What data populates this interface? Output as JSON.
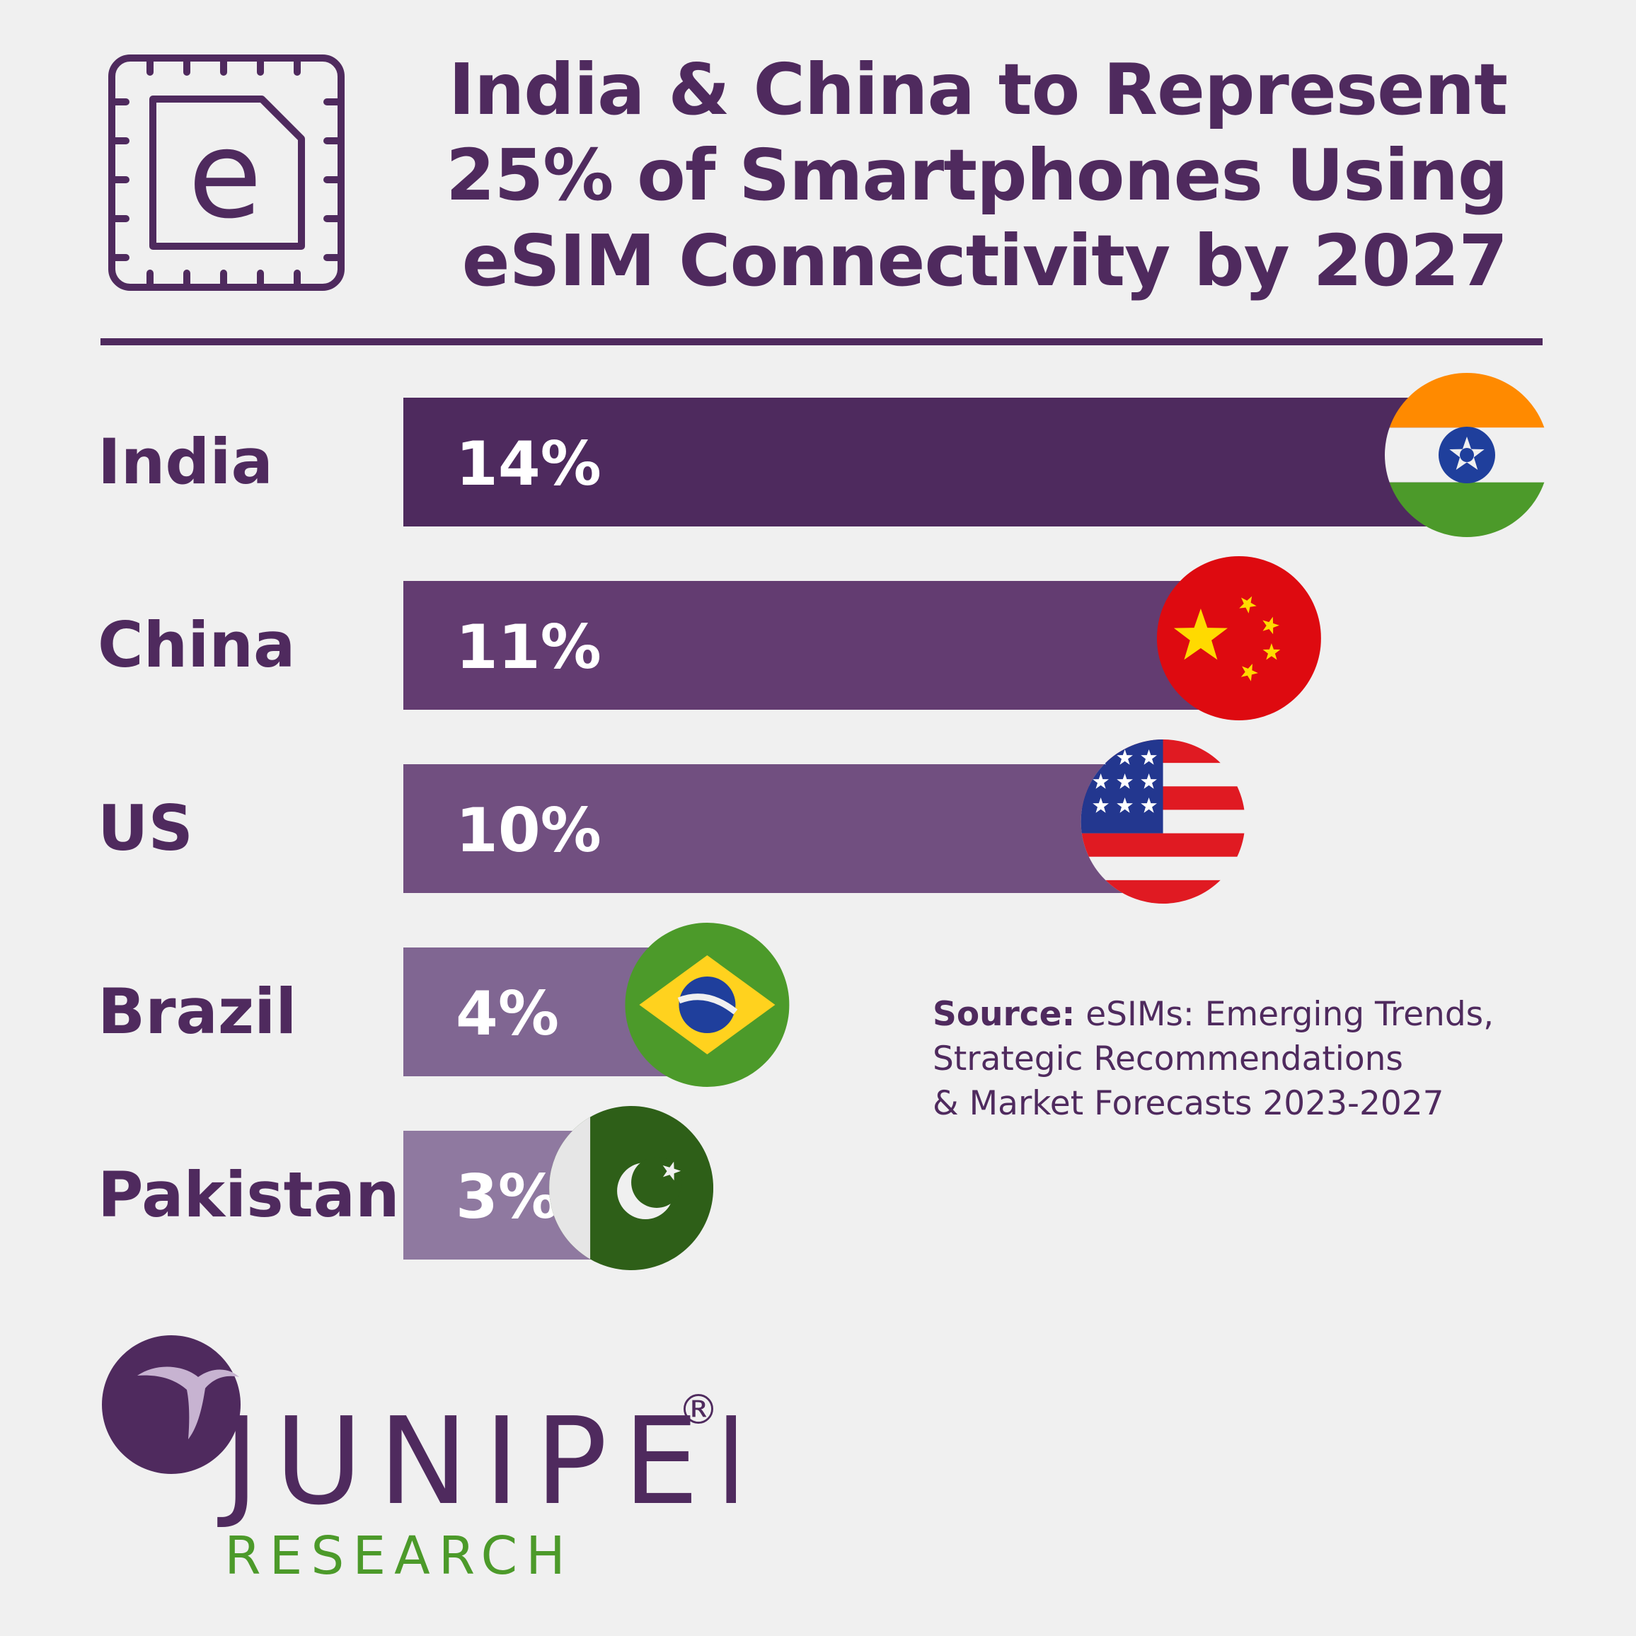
{
  "header": {
    "icon": "esim-chip-icon",
    "title_lines": [
      "India & China to Represent",
      "25% of Smartphones Using",
      "eSIM Connectivity by 2027"
    ]
  },
  "chart_data": {
    "type": "bar",
    "orientation": "horizontal",
    "title": "India & China to Represent 25% of Smartphones Using eSIM Connectivity by 2027",
    "categories": [
      "India",
      "China",
      "US",
      "Brazil",
      "Pakistan"
    ],
    "values": [
      14,
      11,
      10,
      4,
      3
    ],
    "value_labels": [
      "14%",
      "11%",
      "10%",
      "4%",
      "3%"
    ],
    "unit": "%",
    "xlim": [
      0,
      14
    ],
    "flags": [
      "india-flag-icon",
      "china-flag-icon",
      "us-flag-icon",
      "brazil-flag-icon",
      "pakistan-flag-icon"
    ],
    "colors": [
      "#4e2a5e",
      "#633c71",
      "#714f80",
      "#806692",
      "#8f79a0"
    ],
    "grid": false,
    "legend": "none"
  },
  "source": {
    "label": "Source:",
    "lines": [
      "eSIMs: Emerging Trends,",
      "Strategic Recommendations",
      "& Market Forecasts 2023-2027"
    ]
  },
  "logo": {
    "name": "JUNIPER",
    "registered": "®",
    "subtitle": "RESEARCH",
    "icon": "juniper-logo-icon"
  },
  "colors": {
    "primary": "#4f2a5e",
    "background": "#f0f0f0",
    "research_green": "#4c9a2a",
    "value_text": "#ffffff"
  }
}
